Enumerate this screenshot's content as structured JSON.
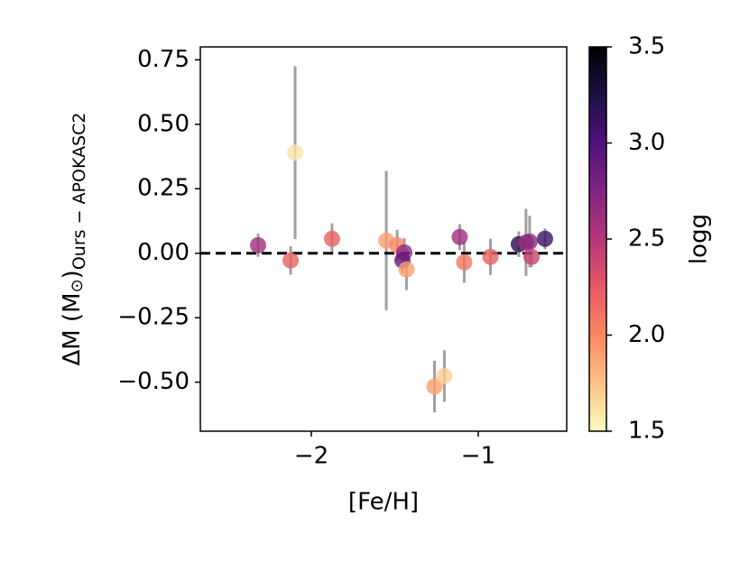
{
  "chart_data": {
    "type": "scatter",
    "x_label": "[Fe/H]",
    "y_label": "ΔM (M",
    "y_label_sym": "⊙",
    "y_label_close": ")",
    "y_label_sub": "Ours − APOKASC2",
    "x": [
      -2.319,
      -2.124,
      -2.097,
      -1.876,
      -1.551,
      -1.486,
      -1.443,
      -1.454,
      -1.43,
      -1.262,
      -1.203,
      -1.111,
      -1.084,
      -0.927,
      -0.757,
      -0.714,
      -0.692,
      -0.681,
      -0.6
    ],
    "values": [
      0.031,
      -0.028,
      0.39,
      0.056,
      0.049,
      0.031,
      0.003,
      -0.028,
      -0.063,
      -0.517,
      -0.476,
      0.063,
      -0.035,
      -0.014,
      0.035,
      0.042,
      0.045,
      -0.014,
      0.056
    ],
    "errors": [
      0.045,
      0.055,
      0.335,
      0.06,
      0.27,
      0.06,
      0.055,
      0.05,
      0.08,
      0.1,
      0.1,
      0.05,
      0.08,
      0.07,
      0.05,
      0.13,
      0.1,
      0.04,
      0.04
    ],
    "logg": [
      2.6,
      2.2,
      1.6,
      2.2,
      1.9,
      2.0,
      2.7,
      2.9,
      1.9,
      1.9,
      1.7,
      2.6,
      2.1,
      2.2,
      3.2,
      2.6,
      2.7,
      2.4,
      3.1
    ],
    "xlim": [
      -2.665,
      -0.47
    ],
    "ylim": [
      -0.69,
      0.8
    ],
    "xticks": [
      {
        "value": -2,
        "label": "−2"
      },
      {
        "value": -1,
        "label": "−1"
      }
    ],
    "yticks": [
      {
        "value": 0.75,
        "label": "0.75"
      },
      {
        "value": 0.5,
        "label": "0.50"
      },
      {
        "value": 0.25,
        "label": "0.25"
      },
      {
        "value": 0,
        "label": "0.00"
      },
      {
        "value": -0.25,
        "label": "−0.25"
      },
      {
        "value": -0.5,
        "label": "−0.50"
      }
    ],
    "hline": 0,
    "error_color": "#a0a0a0",
    "colorbar_label": "logg",
    "clim": [
      1.5,
      3.5
    ],
    "cticks": [
      {
        "value": 1.5,
        "label": "1.5"
      },
      {
        "value": 2,
        "label": "2.0"
      },
      {
        "value": 2.5,
        "label": "2.5"
      },
      {
        "value": 3,
        "label": "3.0"
      },
      {
        "value": 3.5,
        "label": "3.5"
      }
    ],
    "colormap": [
      "#fcfdbf",
      "#fec287",
      "#fb8761",
      "#e55964",
      "#b5367a",
      "#812581",
      "#4f127b",
      "#1c1044",
      "#000004"
    ]
  }
}
